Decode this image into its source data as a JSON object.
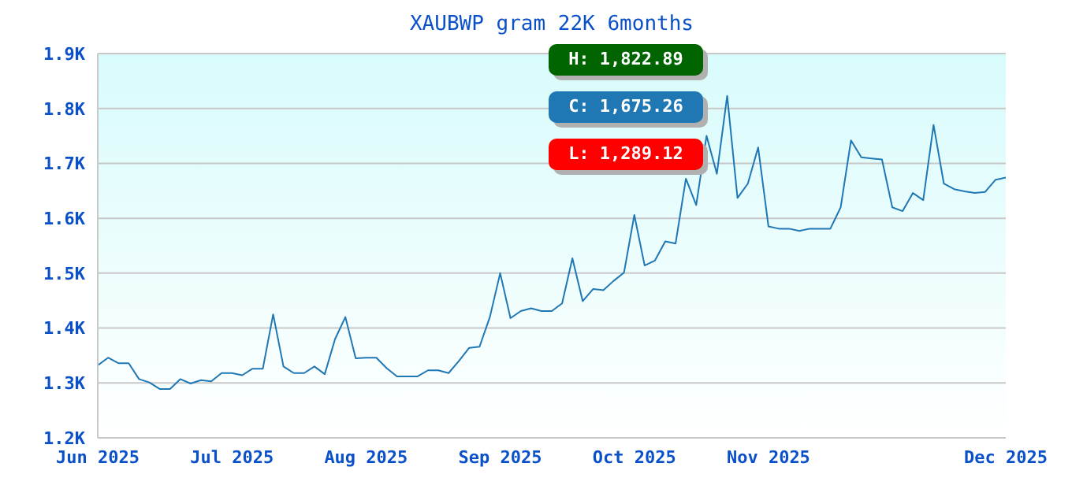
{
  "chart_data": {
    "type": "line",
    "title": "XAUBWP gram 22K 6months",
    "categories": [
      "Jun 2025",
      null,
      null,
      null,
      null,
      null,
      null,
      null,
      null,
      null,
      null,
      null,
      null,
      "Jul 2025",
      null,
      null,
      null,
      null,
      null,
      null,
      null,
      null,
      null,
      null,
      null,
      null,
      "Aug 2025",
      null,
      null,
      null,
      null,
      null,
      null,
      null,
      null,
      null,
      null,
      null,
      null,
      "Sep 2025",
      null,
      null,
      null,
      null,
      null,
      null,
      null,
      null,
      null,
      null,
      null,
      null,
      "Oct 2025",
      null,
      null,
      null,
      null,
      null,
      null,
      null,
      null,
      null,
      null,
      null,
      null,
      "Nov 2025",
      null,
      null,
      null,
      null,
      null,
      null,
      null,
      null,
      null,
      null,
      null,
      null,
      null,
      null,
      null,
      null,
      null,
      null,
      null,
      null,
      null,
      null,
      "Dec 2025"
    ],
    "series": [
      {
        "color": "#1f77b4",
        "values": [
          1332,
          1346,
          1336,
          1336,
          1307,
          1301,
          1289,
          1289,
          1307,
          1299,
          1305,
          1303,
          1318,
          1318,
          1314,
          1326,
          1326,
          1425,
          1330,
          1318,
          1318,
          1330,
          1316,
          1380,
          1420,
          1345,
          1346,
          1346,
          1327,
          1312,
          1312,
          1312,
          1323,
          1323,
          1318,
          1340,
          1364,
          1366,
          1420,
          1500,
          1418,
          1431,
          1436,
          1431,
          1431,
          1445,
          1527,
          1449,
          1471,
          1469,
          1486,
          1501,
          1606,
          1514,
          1523,
          1558,
          1554,
          1672,
          1624,
          1750,
          1681,
          1823,
          1637,
          1663,
          1729,
          1585,
          1581,
          1581,
          1577,
          1581,
          1581,
          1581,
          1620,
          1742,
          1711,
          1709,
          1707,
          1620,
          1613,
          1646,
          1633,
          1770,
          1663,
          1653,
          1649,
          1646,
          1648,
          1670,
          1674
        ]
      }
    ],
    "ylim": [
      1200,
      1900
    ],
    "yticks": [
      {
        "value": 1200,
        "label": "1.2K"
      },
      {
        "value": 1300,
        "label": "1.3K"
      },
      {
        "value": 1400,
        "label": "1.4K"
      },
      {
        "value": 1500,
        "label": "1.5K"
      },
      {
        "value": 1600,
        "label": "1.6K"
      },
      {
        "value": 1700,
        "label": "1.7K"
      },
      {
        "value": 1800,
        "label": "1.8K"
      },
      {
        "value": 1900,
        "label": "1.9K"
      }
    ],
    "grid": "y",
    "marker": "none",
    "line_style": "solid",
    "legend": false,
    "annotations": [
      "H: 1,822.89",
      "C: 1,675.26",
      "L: 1,289.12"
    ]
  }
}
